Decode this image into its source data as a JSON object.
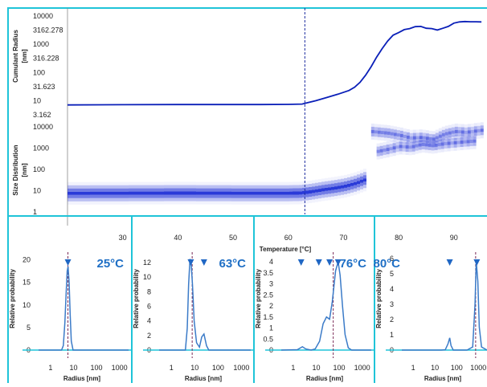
{
  "colors": {
    "frame": "#1fc4d8",
    "cumulant_line": "#0a1fb8",
    "heatmap": "#1f2fd6",
    "marker_line_top": "#1a2a9e",
    "dist_line": "#3b7bc8",
    "marker": "#2067c4",
    "temp_label": "#1f6fc5",
    "dashed_marker": "#7b2a57"
  },
  "top_chart": {
    "cumulant_axis_label_line1": "Cumulant Radius",
    "cumulant_axis_label_line2": "[nm]",
    "cumulant_ticks": [
      "10000",
      "3162.278",
      "1000",
      "316.228",
      "100",
      "31.623",
      "10",
      "3.162"
    ],
    "size_axis_label_line1": "Size Distribution",
    "size_axis_label_line2": "[nm]",
    "size_ticks": [
      "10000",
      "1000",
      "100",
      "10",
      "1"
    ],
    "x_ticks": [
      "30",
      "40",
      "50",
      "60",
      "70",
      "80",
      "90"
    ],
    "x_title": "Temperature [°C]"
  },
  "chart_data": [
    {
      "type": "line",
      "title": "",
      "ylabel": "Cumulant Radius [nm]",
      "xlabel": "Temperature [°C]",
      "y_scale": "log",
      "ylim": [
        3.162,
        10000
      ],
      "xlim": [
        20,
        96
      ],
      "series": [
        {
          "x": [
            20,
            30,
            40,
            50,
            55,
            60,
            62.5,
            65,
            67,
            69,
            71,
            72,
            73,
            74,
            75,
            76,
            77,
            78,
            79,
            80,
            81,
            82,
            83,
            84,
            85,
            86,
            87,
            88,
            89,
            90,
            91,
            92,
            93,
            94,
            95
          ],
          "y": [
            7.1,
            7.2,
            7.3,
            7.3,
            7.3,
            7.4,
            7.6,
            10,
            13,
            17,
            23,
            30,
            45,
            80,
            160,
            350,
            700,
            1300,
            2100,
            2600,
            3300,
            3600,
            4200,
            4300,
            3700,
            3600,
            3200,
            3700,
            4300,
            5600,
            6200,
            6400,
            6300,
            6300,
            6200
          ]
        }
      ],
      "vertical_marker_x": 63
    },
    {
      "type": "heatmap",
      "title": "",
      "ylabel": "Size Distribution [nm]",
      "xlabel": "Temperature [°C]",
      "y_scale": "log",
      "ylim": [
        1,
        10000
      ],
      "x_range": [
        20,
        96
      ],
      "ridges": [
        {
          "x": [
            20,
            30,
            40,
            50,
            60,
            62,
            64,
            66,
            68,
            70,
            72,
            73,
            74
          ],
          "y": [
            7.5,
            7.6,
            7.7,
            7.6,
            7.6,
            7.8,
            9,
            11,
            13,
            16,
            22,
            28,
            35
          ]
        },
        {
          "x": [
            75,
            78,
            80,
            82,
            84,
            86,
            88,
            90,
            92,
            94,
            95
          ],
          "y": [
            6000,
            5000,
            4000,
            3000,
            3200,
            2600,
            4500,
            6000,
            5500,
            6500,
            7000
          ]
        },
        {
          "x": [
            76,
            78,
            80,
            82,
            84,
            86,
            88,
            90,
            92,
            94
          ],
          "y": [
            700,
            900,
            1200,
            1100,
            1500,
            1300,
            1600,
            1800,
            2000,
            2200
          ]
        }
      ]
    },
    {
      "type": "line",
      "title": "",
      "temperature_label": "25°C",
      "xlabel": "Radius [nm]",
      "ylabel": "Relative probability",
      "x_scale": "log",
      "xlim": [
        0.3,
        2500
      ],
      "ylim": [
        -1,
        21
      ],
      "y_ticks": [
        0,
        5,
        10,
        15,
        20
      ],
      "x_ticks": [
        1,
        10,
        100,
        1000
      ],
      "series": [
        {
          "x": [
            0.3,
            3,
            3.6,
            4.2,
            4.8,
            5.3,
            5.8,
            6.4,
            7.1,
            8,
            9.5,
            2500
          ],
          "y": [
            0,
            0,
            1,
            6,
            13,
            17.5,
            18.5,
            15,
            8,
            2,
            0,
            0
          ]
        }
      ],
      "markers_x": [
        5.7
      ],
      "dashed_marker_x": 5.7
    },
    {
      "type": "line",
      "title": "",
      "temperature_label": "63°C",
      "xlabel": "Radius [nm]",
      "ylabel": "Relative probability",
      "x_scale": "log",
      "xlim": [
        0.3,
        2500
      ],
      "ylim": [
        -0.6,
        13
      ],
      "y_ticks": [
        0,
        2,
        4,
        6,
        8,
        10,
        12
      ],
      "x_ticks": [
        1,
        10,
        100,
        1000
      ],
      "series": [
        {
          "x": [
            0.3,
            4,
            4.8,
            5.5,
            6.3,
            7,
            8,
            9.5,
            12,
            16,
            20,
            25,
            32,
            40,
            2500
          ],
          "y": [
            0,
            0,
            3,
            9,
            12.5,
            12,
            9,
            4,
            1,
            0.4,
            1.8,
            2.2,
            0.6,
            0,
            0
          ]
        }
      ],
      "markers_x": [
        6.8,
        25
      ],
      "dashed_marker_x": 7.8
    },
    {
      "type": "line",
      "title": "",
      "temperature_label": "76°C",
      "xlabel": "Radius [nm]",
      "ylabel": "Relative probability",
      "x_scale": "log",
      "xlim": [
        0.3,
        2500
      ],
      "ylim": [
        -0.2,
        4.3
      ],
      "y_ticks": [
        0,
        0.5,
        1,
        1.5,
        2,
        2.5,
        3,
        3.5,
        4
      ],
      "x_ticks": [
        1,
        10,
        100,
        1000
      ],
      "series": [
        {
          "x": [
            0.3,
            1.5,
            2.5,
            3.5,
            6,
            9,
            14,
            20,
            28,
            38,
            50,
            70,
            90,
            110,
            140,
            180,
            250,
            350,
            2500
          ],
          "y": [
            0,
            0.02,
            0.15,
            0.05,
            0,
            0.05,
            0.4,
            1.2,
            1.5,
            1.4,
            2.2,
            3.6,
            4.0,
            3.4,
            2.0,
            0.7,
            0.1,
            0,
            0
          ]
        }
      ],
      "markers_x": [
        2.2,
        13,
        38,
        90
      ],
      "dashed_marker_x": 55
    },
    {
      "type": "line",
      "title": "",
      "temperature_label": "80°C",
      "xlabel": "Radius [nm]",
      "ylabel": "Relative probability",
      "x_scale": "log",
      "xlim": [
        0.3,
        2500
      ],
      "ylim": [
        -0.1,
        6.2
      ],
      "y_ticks": [
        0,
        1,
        2,
        3,
        4,
        5,
        6
      ],
      "x_ticks": [
        1,
        10,
        100,
        1000
      ],
      "series": [
        {
          "x": [
            0.3,
            20,
            30,
            40,
            48,
            55,
            70,
            300,
            550,
            700,
            800,
            950,
            1100,
            1400,
            2500
          ],
          "y": [
            0,
            0,
            0.02,
            0.4,
            0.8,
            0.3,
            0,
            0,
            0.2,
            3,
            5.8,
            4.5,
            1.5,
            0.2,
            0
          ]
        }
      ],
      "markers_x": [
        48,
        850
      ],
      "dashed_marker_x": 750
    }
  ]
}
